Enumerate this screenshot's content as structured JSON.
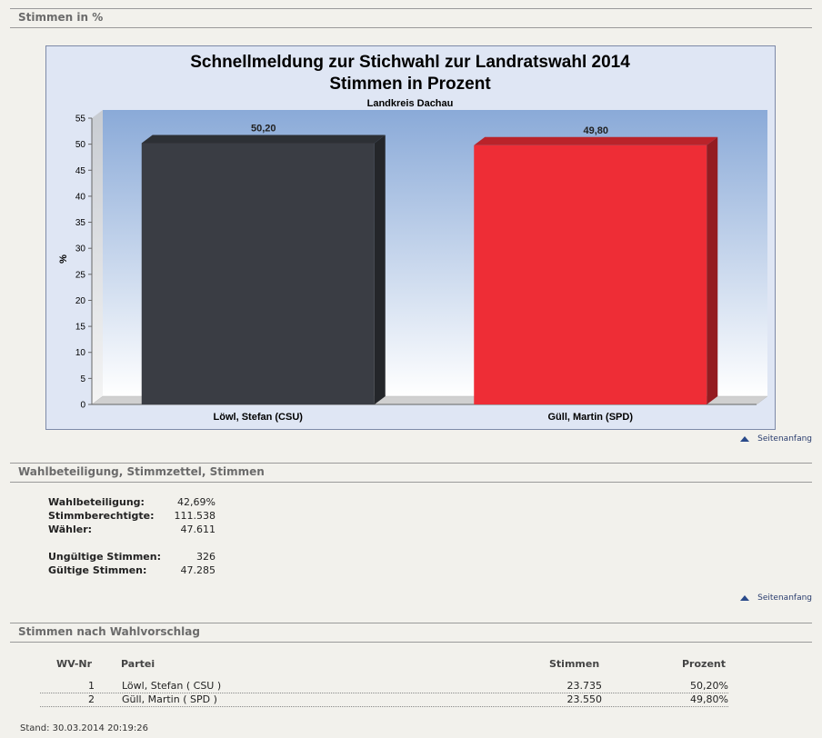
{
  "sections": {
    "stimmen_prozent": "Stimmen in %",
    "wahlbeteiligung": "Wahlbeteiligung, Stimmzettel, Stimmen",
    "nach_vorschlag": "Stimmen nach Wahlvorschlag"
  },
  "chart_data": {
    "type": "bar",
    "title": "Schnellmeldung zur Stichwahl zur Landratswahl 2014",
    "title2": "Stimmen in Prozent",
    "subtitle": "Landkreis Dachau",
    "ylabel": "%",
    "ylim": [
      0,
      55
    ],
    "yticks": [
      0,
      5,
      10,
      15,
      20,
      25,
      30,
      35,
      40,
      45,
      50,
      55
    ],
    "categories": [
      "Löwl, Stefan (CSU)",
      "Güll, Martin (SPD)"
    ],
    "values": [
      50.2,
      49.8
    ],
    "value_labels": [
      "50,20",
      "49,80"
    ],
    "colors": [
      "#3a3d44",
      "#ee2d36"
    ],
    "grid": false
  },
  "top_link_label": "Seitenanfang",
  "stats": {
    "group1": [
      {
        "label": "Wahlbeteiligung:",
        "value": "42,69%"
      },
      {
        "label": "Stimmberechtigte:",
        "value": "111.538"
      },
      {
        "label": "Wähler:",
        "value": "47.611"
      }
    ],
    "group2": [
      {
        "label": "Ungültige Stimmen:",
        "value": "326"
      },
      {
        "label": "Gültige Stimmen:",
        "value": "47.285"
      }
    ]
  },
  "table": {
    "headers": {
      "nr": "WV-Nr",
      "partei": "Partei",
      "stimmen": "Stimmen",
      "prozent": "Prozent"
    },
    "rows": [
      {
        "nr": "1",
        "partei": "Löwl, Stefan ( CSU )",
        "stimmen": "23.735",
        "prozent": "50,20%"
      },
      {
        "nr": "2",
        "partei": "Güll, Martin ( SPD )",
        "stimmen": "23.550",
        "prozent": "49,80%"
      }
    ]
  },
  "footer": "Stand: 30.03.2014 20:19:26"
}
